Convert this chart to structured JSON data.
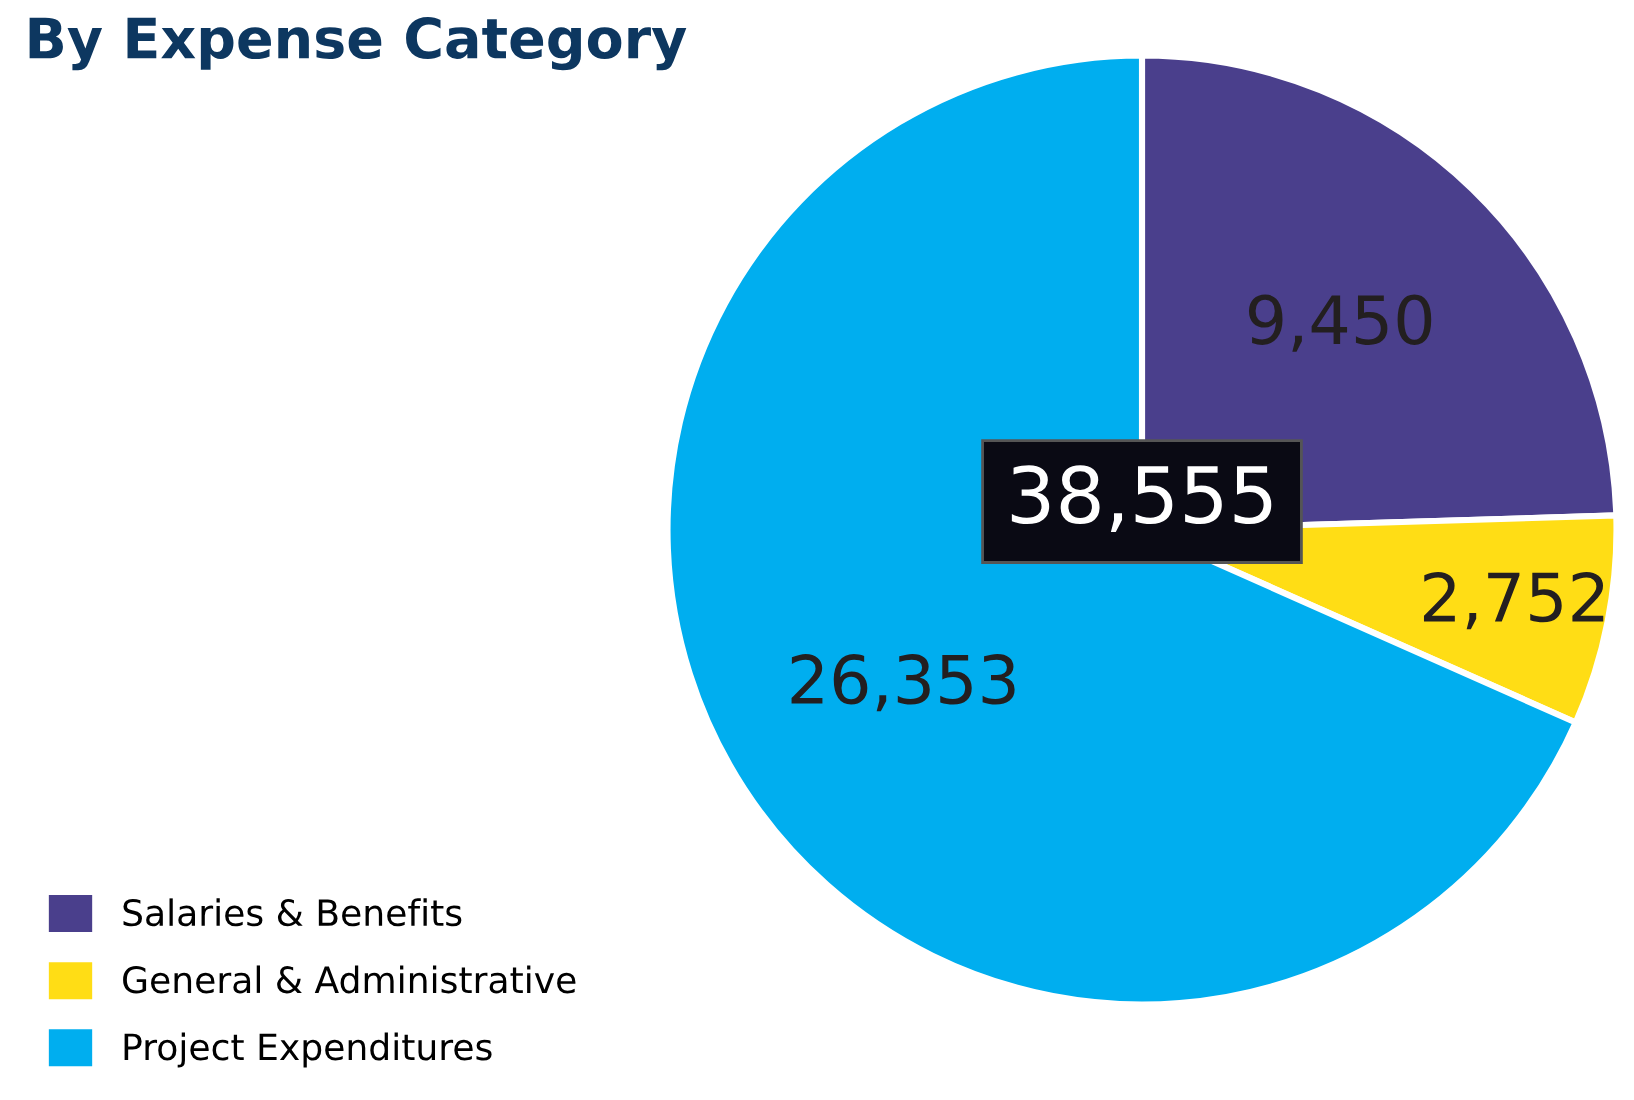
{
  "chart_data": {
    "type": "pie",
    "title": "By Expense Category",
    "categories": [
      "Salaries & Benefits",
      "General & Administrative",
      "Project Expenditures"
    ],
    "values": [
      9450,
      2752,
      26353
    ],
    "colors": [
      "#4a3f8c",
      "#ffdd15",
      "#00aeef"
    ],
    "value_labels": [
      "9,450",
      "2,752",
      "26,353"
    ],
    "annotations": [
      "38,555"
    ],
    "legend": "bottom left"
  }
}
